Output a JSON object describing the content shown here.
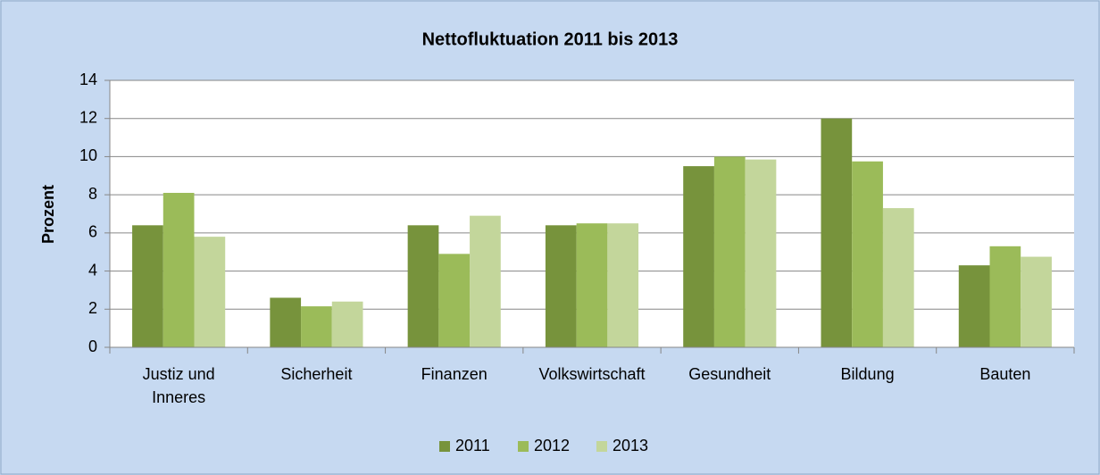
{
  "chart_data": {
    "type": "bar",
    "title": "Nettofluktuation 2011 bis 2013",
    "y_label": "Prozent",
    "categories": [
      "Justiz und Inneres",
      "Sicherheit",
      "Finanzen",
      "Volkswirtschaft",
      "Gesundheit",
      "Bildung",
      "Bauten"
    ],
    "series": [
      {
        "name": "2011",
        "color": "#77933c",
        "values": [
          6.4,
          2.6,
          6.4,
          6.4,
          9.5,
          12.0,
          4.3
        ]
      },
      {
        "name": "2012",
        "color": "#9bbb59",
        "values": [
          8.1,
          2.15,
          4.9,
          6.5,
          10.0,
          9.75,
          5.3
        ]
      },
      {
        "name": "2013",
        "color": "#c3d69b",
        "values": [
          5.8,
          2.4,
          6.9,
          6.5,
          9.85,
          7.3,
          4.75
        ]
      }
    ],
    "ylim": [
      0,
      14
    ],
    "yticks": [
      0,
      2,
      4,
      6,
      8,
      10,
      12,
      14
    ],
    "grid": true,
    "legend": "bottom"
  }
}
